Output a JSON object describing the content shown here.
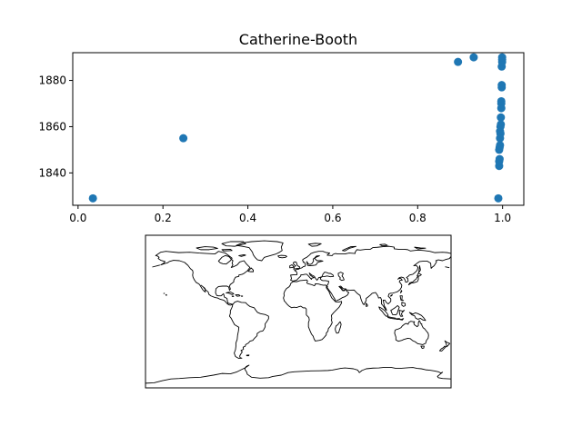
{
  "chart_data": [
    {
      "type": "scatter",
      "title": "Catherine-Booth",
      "xlabel": "",
      "ylabel": "",
      "xlim": [
        -0.0125,
        1.05
      ],
      "ylim": [
        1826,
        1892
      ],
      "x_ticks": [
        0.0,
        0.2,
        0.4,
        0.6,
        0.8,
        1.0
      ],
      "x_tick_labels": [
        "0.0",
        "0.2",
        "0.4",
        "0.6",
        "0.8",
        "1.0"
      ],
      "y_ticks": [
        1840,
        1860,
        1880
      ],
      "y_tick_labels": [
        "1840",
        "1860",
        "1880"
      ],
      "grid": false,
      "marker_color": "#1f77b4",
      "points": [
        {
          "x": 0.035,
          "y": 1829
        },
        {
          "x": 0.248,
          "y": 1855
        },
        {
          "x": 0.895,
          "y": 1888
        },
        {
          "x": 0.932,
          "y": 1890
        },
        {
          "x": 0.99,
          "y": 1829
        },
        {
          "x": 0.992,
          "y": 1843
        },
        {
          "x": 0.992,
          "y": 1845
        },
        {
          "x": 0.993,
          "y": 1846
        },
        {
          "x": 0.992,
          "y": 1850
        },
        {
          "x": 0.993,
          "y": 1851
        },
        {
          "x": 0.994,
          "y": 1852
        },
        {
          "x": 0.994,
          "y": 1855
        },
        {
          "x": 0.995,
          "y": 1857
        },
        {
          "x": 0.994,
          "y": 1858
        },
        {
          "x": 0.995,
          "y": 1860
        },
        {
          "x": 0.996,
          "y": 1861
        },
        {
          "x": 0.996,
          "y": 1864
        },
        {
          "x": 0.997,
          "y": 1868
        },
        {
          "x": 0.997,
          "y": 1870
        },
        {
          "x": 0.997,
          "y": 1871
        },
        {
          "x": 0.998,
          "y": 1877
        },
        {
          "x": 0.998,
          "y": 1878
        },
        {
          "x": 0.998,
          "y": 1886
        },
        {
          "x": 0.999,
          "y": 1888
        },
        {
          "x": 0.999,
          "y": 1889
        },
        {
          "x": 0.999,
          "y": 1890
        }
      ]
    },
    {
      "type": "map",
      "projection": "equirectangular",
      "lon_range": [
        -180,
        180
      ],
      "lat_range": [
        -90,
        90
      ],
      "content": "coastlines",
      "line_color": "#000000"
    }
  ]
}
